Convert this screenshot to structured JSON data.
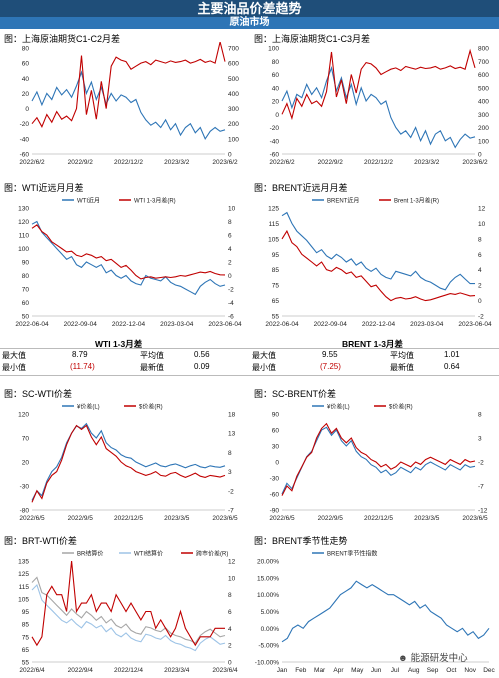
{
  "header": {
    "title": "主要油品价差趋势",
    "subtitle": "原油市场"
  },
  "panels": [
    {
      "id": "p1",
      "title": "图：上海原油期货C1-C2月差"
    },
    {
      "id": "p2",
      "title": "图：上海原油期货C1-C3月差"
    },
    {
      "id": "p3",
      "title": "图：WTI近远月月差"
    },
    {
      "id": "p4",
      "title": "图：BRENT近远月月差"
    },
    {
      "id": "p5",
      "title": "图：SC-WTI价差"
    },
    {
      "id": "p6",
      "title": "图：SC-BRENT价差"
    },
    {
      "id": "p7",
      "title": "图：BRT-WTI价差"
    },
    {
      "id": "p8",
      "title": "图：BRENT季节性走势"
    }
  ],
  "stats": {
    "wti": {
      "title": "WTI 1-3月差",
      "max_label": "最大值",
      "max": "8.79",
      "avg_label": "平均值",
      "avg": "0.56",
      "min_label": "最小值",
      "min": "(11.74)",
      "latest_label": "最新值",
      "latest": "0.09"
    },
    "brent": {
      "title": "BRENT 1-3月差",
      "max_label": "最大值",
      "max": "9.55",
      "avg_label": "平均值",
      "avg": "1.01",
      "min_label": "最小值",
      "min": "(7.25)",
      "latest_label": "最新值",
      "latest": "0.64"
    }
  },
  "watermark": "能源研发中心",
  "colors": {
    "header": "#1f4e79",
    "subheader": "#2e75b6",
    "red": "#c00000",
    "blue": "#2e75b6",
    "lightblue": "#9dc3e6",
    "gray": "#a6a6a6"
  },
  "chart_data": [
    {
      "id": "p1",
      "type": "line",
      "xticks": [
        "2022/6/2",
        "2022/9/2",
        "2022/12/2",
        "2023/3/2",
        "2023/6/2"
      ],
      "y_left": {
        "ticks": [
          "80",
          "60",
          "40",
          "20",
          "0",
          "-20",
          "-40",
          "-60"
        ],
        "lim": [
          -60,
          80
        ]
      },
      "y_right": {
        "ticks": [
          "700",
          "600",
          "500",
          "400",
          "300",
          "200",
          "100",
          "0"
        ],
        "lim": [
          0,
          700
        ]
      },
      "series": [
        {
          "color": "#2e75b6",
          "axis": "left",
          "values": [
            10,
            22,
            5,
            20,
            12,
            28,
            18,
            25,
            15,
            30,
            48,
            20,
            35,
            12,
            28,
            6,
            20,
            10,
            18,
            15,
            8,
            12,
            -5,
            -15,
            -22,
            -18,
            -25,
            -15,
            -28,
            -20,
            -35,
            -25,
            -20,
            -32,
            -25,
            -40,
            -30,
            -25,
            -30,
            -28
          ]
        },
        {
          "color": "#c00000",
          "axis": "right",
          "values": [
            200,
            240,
            180,
            260,
            210,
            280,
            230,
            250,
            220,
            300,
            650,
            260,
            420,
            230,
            480,
            300,
            580,
            640,
            620,
            610,
            560,
            580,
            600,
            610,
            590,
            620,
            610,
            600,
            615,
            605,
            610,
            620,
            600,
            610,
            625,
            605,
            615,
            600,
            740,
            610
          ]
        }
      ]
    },
    {
      "id": "p2",
      "type": "line",
      "xticks": [
        "2022/6/2",
        "2022/9/2",
        "2022/12/2",
        "2023/3/2",
        "2023/6/2"
      ],
      "y_left": {
        "ticks": [
          "100",
          "80",
          "60",
          "40",
          "20",
          "0",
          "-20",
          "-40",
          "-60"
        ],
        "lim": [
          -60,
          100
        ]
      },
      "y_right": {
        "ticks": [
          "800",
          "700",
          "600",
          "500",
          "400",
          "300",
          "200",
          "100",
          "0"
        ],
        "lim": [
          0,
          800
        ]
      },
      "series": [
        {
          "color": "#2e75b6",
          "axis": "left",
          "values": [
            20,
            35,
            10,
            30,
            25,
            45,
            30,
            40,
            25,
            50,
            70,
            35,
            55,
            25,
            45,
            15,
            40,
            20,
            30,
            25,
            15,
            20,
            -5,
            -20,
            -30,
            -25,
            -35,
            -20,
            -40,
            -25,
            -45,
            -30,
            -25,
            -40,
            -35,
            -50,
            -38,
            -30,
            -36,
            -34
          ]
        },
        {
          "color": "#c00000",
          "axis": "right",
          "values": [
            300,
            380,
            270,
            420,
            360,
            450,
            380,
            400,
            360,
            470,
            770,
            430,
            560,
            380,
            600,
            460,
            640,
            690,
            680,
            650,
            600,
            620,
            640,
            650,
            630,
            660,
            650,
            640,
            655,
            645,
            650,
            660,
            640,
            650,
            665,
            645,
            655,
            640,
            780,
            650
          ]
        }
      ]
    },
    {
      "id": "p3",
      "type": "line",
      "xticks": [
        "2022-06-04",
        "2022-09-04",
        "2022-12-04",
        "2023-03-04",
        "2023-06-04"
      ],
      "legend": [
        "WTI近月",
        "WTI 1-3月差(R)"
      ],
      "y_left": {
        "ticks": [
          "130",
          "120",
          "110",
          "100",
          "90",
          "80",
          "70",
          "60",
          "50"
        ],
        "lim": [
          50,
          130
        ]
      },
      "y_right": {
        "ticks": [
          "10",
          "8",
          "6",
          "4",
          "2",
          "0",
          "-2",
          "-4",
          "-6"
        ],
        "lim": [
          -6,
          10
        ]
      },
      "series": [
        {
          "name": "WTI近月",
          "color": "#2e75b6",
          "axis": "left",
          "values": [
            118,
            120,
            112,
            108,
            104,
            100,
            96,
            92,
            94,
            88,
            86,
            90,
            88,
            86,
            88,
            82,
            84,
            80,
            78,
            80,
            76,
            74,
            73,
            80,
            78,
            77,
            76,
            79,
            75,
            73,
            72,
            70,
            68,
            66,
            72,
            75,
            77,
            74,
            72,
            73
          ]
        },
        {
          "name": "WTI 1-3月差(R)",
          "color": "#c00000",
          "axis": "right",
          "values": [
            7,
            7.5,
            6.5,
            6,
            5,
            4.5,
            4,
            3.5,
            3.6,
            3,
            2.8,
            3.2,
            3,
            2.6,
            2.8,
            2.2,
            2.4,
            1.8,
            1.2,
            1.5,
            0.8,
            0,
            -0.5,
            -0.3,
            -0.2,
            -0.4,
            -0.3,
            -0.2,
            -0.3,
            -0.2,
            0,
            -0.1,
            0.1,
            0.3,
            0.5,
            0.4,
            0.6,
            0.3,
            0.1,
            0.09
          ]
        }
      ]
    },
    {
      "id": "p4",
      "type": "line",
      "xticks": [
        "2022-06-04",
        "2022-09-04",
        "2022-12-04",
        "2023-03-04",
        "2023-06-04"
      ],
      "legend": [
        "BRENT近月",
        "Brent 1-3月差(R)"
      ],
      "y_left": {
        "ticks": [
          "125",
          "115",
          "105",
          "95",
          "85",
          "75",
          "65",
          "55"
        ],
        "lim": [
          55,
          125
        ]
      },
      "y_right": {
        "ticks": [
          "12",
          "10",
          "8",
          "6",
          "4",
          "2",
          "0",
          "-2"
        ],
        "lim": [
          -2,
          12
        ]
      },
      "series": [
        {
          "name": "BRENT近月",
          "color": "#2e75b6",
          "axis": "left",
          "values": [
            120,
            122,
            115,
            110,
            107,
            104,
            100,
            96,
            98,
            94,
            92,
            95,
            93,
            90,
            92,
            88,
            90,
            86,
            84,
            86,
            82,
            80,
            79,
            84,
            83,
            82,
            81,
            84,
            80,
            78,
            77,
            75,
            73,
            72,
            77,
            80,
            82,
            79,
            76,
            76
          ]
        },
        {
          "name": "Brent 1-3月差(R)",
          "color": "#c00000",
          "axis": "right",
          "values": [
            8,
            9,
            7.5,
            7,
            6,
            5.5,
            5,
            4.5,
            5,
            4,
            3.8,
            4.3,
            4,
            3.5,
            3.7,
            3,
            3.2,
            2.5,
            1.8,
            2,
            1.2,
            0.5,
            0,
            0.3,
            0.4,
            0.2,
            0.3,
            0.5,
            0.2,
            0,
            0.1,
            0.3,
            0.5,
            0.7,
            0.9,
            0.8,
            1,
            0.8,
            0.6,
            0.64
          ]
        }
      ]
    },
    {
      "id": "p5",
      "type": "line",
      "xticks": [
        "2022/6/5",
        "2022/9/5",
        "2022/12/5",
        "2023/3/5",
        "2023/6/5"
      ],
      "legend": [
        "¥价差(L)",
        "$价差(R)"
      ],
      "y_left": {
        "ticks": [
          "120",
          "70",
          "20",
          "-30",
          "-80"
        ],
        "lim": [
          -80,
          120
        ]
      },
      "y_right": {
        "ticks": [
          "18",
          "13",
          "8",
          "3",
          "-2",
          "-7"
        ],
        "lim": [
          -7,
          18
        ]
      },
      "series": [
        {
          "name": "¥价差(L)",
          "color": "#2e75b6",
          "axis": "left",
          "values": [
            -60,
            -40,
            -50,
            -20,
            0,
            10,
            30,
            60,
            80,
            95,
            90,
            100,
            80,
            70,
            85,
            60,
            50,
            45,
            35,
            30,
            28,
            20,
            15,
            10,
            14,
            18,
            12,
            10,
            14,
            16,
            12,
            8,
            12,
            15,
            10,
            8,
            12,
            10,
            9,
            12
          ]
        },
        {
          "name": "$价差(R)",
          "color": "#c00000",
          "axis": "right",
          "values": [
            -5,
            -2,
            -4,
            0,
            2,
            3,
            6,
            10,
            13,
            15,
            14,
            15,
            12,
            10,
            12,
            9,
            8,
            7,
            5.5,
            4.5,
            4,
            3,
            2.5,
            2,
            2.4,
            3,
            2,
            1.8,
            2.5,
            2.8,
            2,
            1.5,
            2,
            2.6,
            1.8,
            1.5,
            2,
            1.8,
            1.6,
            2
          ]
        }
      ]
    },
    {
      "id": "p6",
      "type": "line",
      "xticks": [
        "2022/6/5",
        "2022/9/5",
        "2022/12/5",
        "2023/3/5",
        "2023/6/5"
      ],
      "legend": [
        "¥价差(L)",
        "$价差(R)"
      ],
      "y_left": {
        "ticks": [
          "90",
          "60",
          "30",
          "0",
          "-30",
          "-60",
          "-90"
        ],
        "lim": [
          -90,
          90
        ]
      },
      "y_right": {
        "ticks": [
          "8",
          "3",
          "-2",
          "-7",
          "-12"
        ],
        "lim": [
          -12,
          8
        ]
      },
      "series": [
        {
          "name": "¥价差(L)",
          "color": "#2e75b6",
          "axis": "left",
          "values": [
            -60,
            -40,
            -50,
            -30,
            -10,
            10,
            20,
            40,
            60,
            65,
            50,
            60,
            40,
            30,
            40,
            20,
            10,
            5,
            -5,
            -10,
            -20,
            -15,
            -25,
            -20,
            -10,
            -15,
            -20,
            -10,
            -15,
            -5,
            0,
            -5,
            -10,
            -15,
            -5,
            -10,
            -15,
            -5,
            -10,
            -8
          ]
        },
        {
          "name": "$价差(R)",
          "color": "#c00000",
          "axis": "right",
          "values": [
            -9,
            -7,
            -8,
            -5,
            -3,
            -1,
            0,
            3,
            5,
            6,
            4,
            5,
            3,
            2,
            3,
            1,
            0,
            -0.5,
            -1.5,
            -2,
            -3,
            -2.5,
            -3.5,
            -3,
            -2,
            -2.5,
            -3,
            -2,
            -2.5,
            -1.5,
            -1,
            -1.5,
            -2,
            -2.5,
            -1.5,
            -2,
            -2.5,
            -1.5,
            -2,
            -1.8
          ]
        }
      ]
    },
    {
      "id": "p7",
      "type": "line",
      "xticks": [
        "2022/6/4",
        "2022/9/4",
        "2022/12/4",
        "2023/3/4",
        "2023/6/4"
      ],
      "legend": [
        "BR结算价",
        "WTI结算价",
        "跨市价差(R)"
      ],
      "y_left": {
        "ticks": [
          "135",
          "125",
          "115",
          "105",
          "95",
          "85",
          "75",
          "65",
          "55"
        ],
        "lim": [
          55,
          135
        ]
      },
      "y_right": {
        "ticks": [
          "12",
          "10",
          "8",
          "6",
          "4",
          "2",
          "0"
        ],
        "lim": [
          0,
          12
        ]
      },
      "series": [
        {
          "name": "BR结算价",
          "color": "#a6a6a6",
          "axis": "left",
          "values": [
            118,
            122,
            110,
            108,
            104,
            100,
            96,
            92,
            97,
            93,
            90,
            95,
            92,
            88,
            91,
            86,
            89,
            84,
            82,
            85,
            80,
            78,
            77,
            83,
            82,
            80,
            79,
            82,
            78,
            76,
            75,
            73,
            72,
            70,
            76,
            79,
            81,
            78,
            75,
            76
          ]
        },
        {
          "name": "WTI结算价",
          "color": "#9dc3e6",
          "axis": "left",
          "values": [
            112,
            116,
            104,
            100,
            96,
            92,
            88,
            86,
            89,
            85,
            82,
            87,
            85,
            82,
            84,
            79,
            82,
            77,
            75,
            78,
            74,
            72,
            71,
            77,
            76,
            74,
            73,
            76,
            72,
            70,
            69,
            67,
            66,
            64,
            70,
            73,
            75,
            72,
            69,
            70
          ]
        },
        {
          "name": "跨市价差(R)",
          "color": "#c00000",
          "axis": "right",
          "values": [
            3,
            2,
            3,
            8,
            9,
            8,
            8,
            6,
            12,
            6,
            7,
            7,
            8,
            6,
            7,
            7,
            6,
            8,
            7,
            6,
            7,
            6,
            5,
            6,
            6,
            4,
            5,
            4,
            3,
            4,
            6,
            4,
            3,
            2,
            3,
            3,
            3,
            4,
            4,
            4
          ]
        }
      ]
    },
    {
      "id": "p8",
      "type": "line",
      "xticks": [
        "Jan",
        "Feb",
        "Mar",
        "Apr",
        "May",
        "Jun",
        "Jul",
        "Aug",
        "Sep",
        "Oct",
        "Nov",
        "Dec"
      ],
      "legend": [
        "BRENT季节性指数"
      ],
      "y_left": {
        "ticks": [
          "20.00%",
          "15.00%",
          "10.00%",
          "5.00%",
          "0.00%",
          "-5.00%",
          "-10.00%"
        ],
        "lim": [
          -10,
          20
        ]
      },
      "series": [
        {
          "name": "BRENT季节性指数",
          "color": "#2e75b6",
          "axis": "left",
          "values": [
            -4,
            -3,
            0,
            1,
            0,
            2,
            3,
            4,
            5,
            6,
            8,
            10,
            11,
            12,
            14,
            13,
            12,
            13,
            12,
            11,
            10,
            10,
            9,
            8,
            7,
            8,
            6,
            7,
            5,
            4,
            3,
            1,
            0,
            -1,
            0,
            -2,
            -1,
            -3,
            -2,
            0
          ]
        }
      ]
    }
  ]
}
